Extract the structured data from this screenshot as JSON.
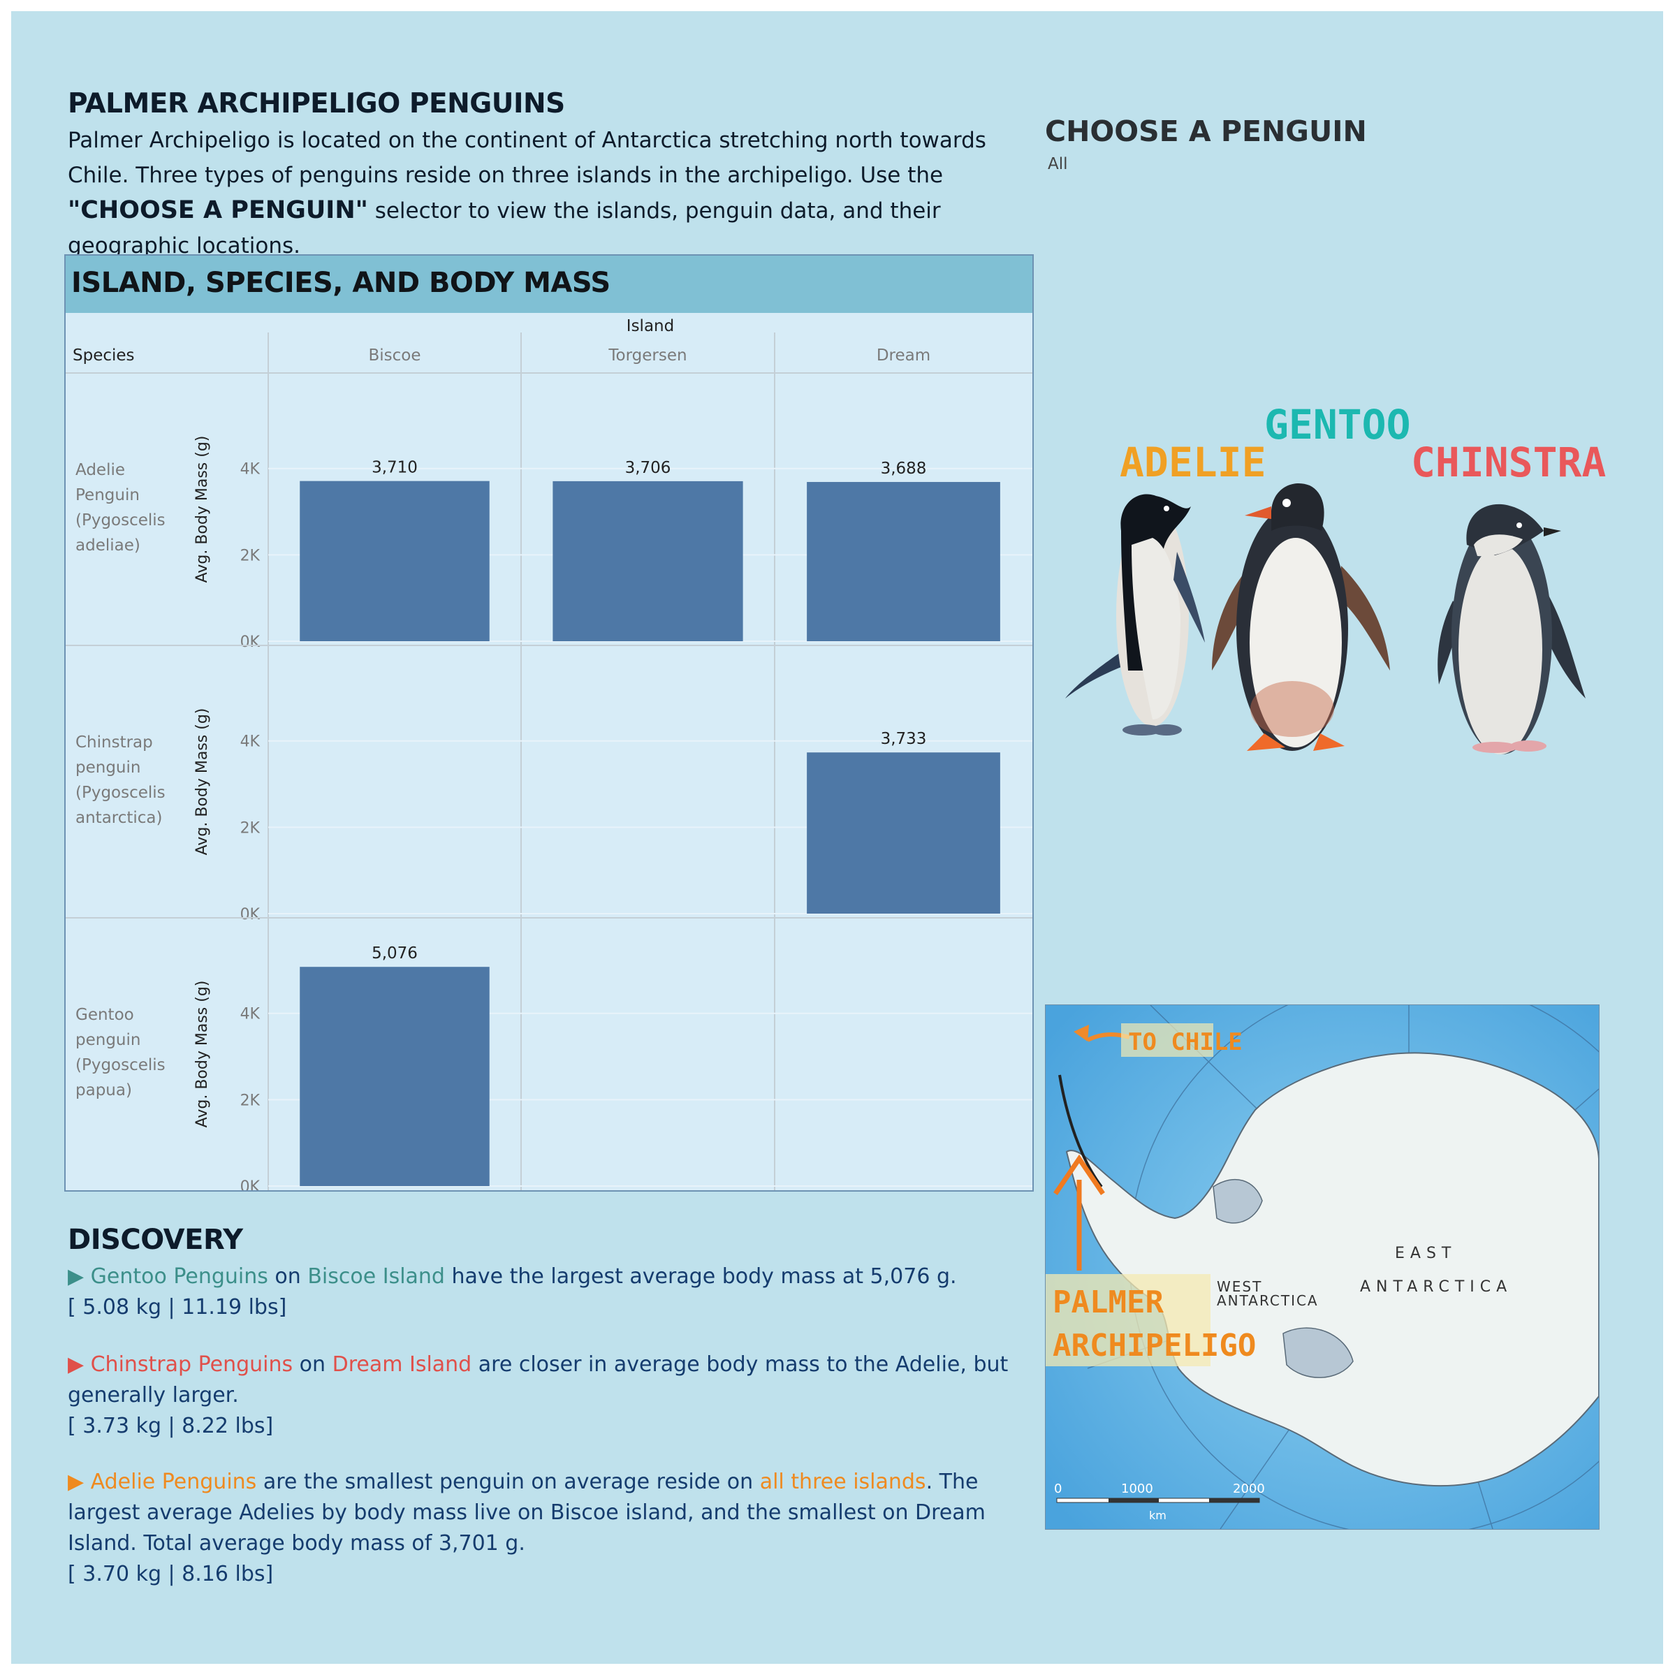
{
  "header": {
    "title": "PALMER ARCHIPELIGO PENGUINS",
    "intro_part1": "Palmer Archipeligo is located on the continent of Antarctica stretching north towards Chile. Three types of penguins reside on three islands in the archipeligo. Use the ",
    "intro_bold": "\"CHOOSE A PENGUIN\"",
    "intro_part2": " selector to view the islands, penguin data, and their geographic locations."
  },
  "selector": {
    "title": "CHOOSE A PENGUIN",
    "value": "All"
  },
  "panel": {
    "title": "ISLAND, SPECIES, AND BODY MASS"
  },
  "chart_data": {
    "type": "bar",
    "title": "ISLAND, SPECIES, AND BODY MASS",
    "column_header": "Island",
    "row_header": "Species",
    "ylabel": "Avg. Body Mass (g)",
    "yticks": [
      "0K",
      "2K",
      "4K"
    ],
    "ylim": [
      0,
      5500
    ],
    "islands": [
      "Biscoe",
      "Torgersen",
      "Dream"
    ],
    "rows": [
      {
        "species": [
          "Adelie",
          "Penguin",
          "(Pygoscelis",
          "adeliae)"
        ],
        "values": [
          3710,
          3706,
          3688
        ],
        "labels": [
          "3,710",
          "3,706",
          "3,688"
        ]
      },
      {
        "species": [
          "Chinstrap",
          "penguin",
          "(Pygoscelis",
          "antarctica)"
        ],
        "values": [
          null,
          null,
          3733
        ],
        "labels": [
          "",
          "",
          "3,733"
        ]
      },
      {
        "species": [
          "Gentoo",
          "penguin",
          "(Pygoscelis",
          "papua)"
        ],
        "values": [
          5076,
          null,
          null
        ],
        "labels": [
          "5,076",
          "",
          ""
        ]
      }
    ],
    "bar_color": "#4e78a6"
  },
  "penguin_labels": {
    "adelie": "ADELIE",
    "gentoo": "GENTOO",
    "chinstrap": "CHINSTRAP"
  },
  "map": {
    "to_chile": "TO CHILE",
    "palmer_1": "PALMER",
    "palmer_2": "ARCHIPELIGO",
    "east": "EAST",
    "antarctica": "ANTARCTICA",
    "west": "WEST",
    "west_2": "ANTARCTICA",
    "scale_0": "0",
    "scale_1000": "1000",
    "scale_2000": "2000",
    "scale_unit": "km"
  },
  "discovery": {
    "title": "DISCOVERY",
    "p1": {
      "arrow": "▶ ",
      "species": "Gentoo Penguins",
      "on": " on ",
      "island": "Biscoe Island",
      "rest": " have the largest average body mass at 5,076 g.",
      "units": "[ 5.08 kg | 11.19 lbs]"
    },
    "p2": {
      "arrow": "▶ ",
      "species": "Chinstrap Penguins",
      "on": " on ",
      "island": "Dream Island",
      "rest": " are closer in average body mass to the Adelie, but generally larger.",
      "units": "[ 3.73 kg | 8.22 lbs]"
    },
    "p3": {
      "arrow": "▶ ",
      "species": "Adelie Penguins",
      "mid": " are the smallest penguin on average reside on ",
      "island": "all three islands",
      "rest": ". The largest average Adelies by body mass live on Biscoe island, and the smallest on Dream Island. Total average body mass of 3,701 g.",
      "units": "[ 3.70 kg | 8.16 lbs]"
    }
  },
  "colors": {
    "background": "#bfe1ec",
    "panel_header": "#80c0d4",
    "panel_body": "#d7ecf7",
    "gentoo": "#3c8f8a",
    "chinstrap": "#e0504a",
    "adelie": "#ef8a1f"
  }
}
